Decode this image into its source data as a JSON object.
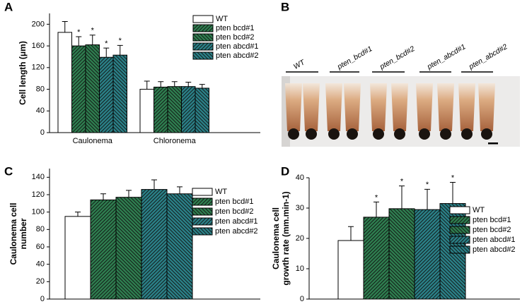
{
  "panels": [
    "A",
    "B",
    "C",
    "D"
  ],
  "image_labels": [
    "WT",
    "pten_bcd#1",
    "pten_bcd#2",
    "pten_abcd#1",
    "pten_abcd#2"
  ],
  "chart_data": [
    {
      "type": "bar",
      "ylabel": [
        "Cell length (μm)"
      ],
      "categories": [
        "Caulonema",
        "Chloronema"
      ],
      "ylim": [
        0,
        220
      ],
      "yticks": [
        0,
        40,
        80,
        120,
        160,
        200
      ],
      "series": [
        {
          "name": "WT",
          "color": "#ffffff",
          "values": [
            185,
            80
          ],
          "errors": [
            20,
            15
          ]
        },
        {
          "name": "pten bcd#1",
          "color": "#2e7d4f",
          "values": [
            160,
            84
          ],
          "errors": [
            17,
            10
          ],
          "marks": [
            "*",
            null
          ]
        },
        {
          "name": "pten bcd#2",
          "color": "#2e7d4f",
          "values": [
            162,
            85
          ],
          "errors": [
            18,
            9
          ],
          "marks": [
            "*",
            null
          ]
        },
        {
          "name": "pten abcd#1",
          "color": "#2a7f86",
          "values": [
            139,
            85
          ],
          "errors": [
            17,
            8
          ],
          "marks": [
            "*",
            null
          ]
        },
        {
          "name": "pten abcd#2",
          "color": "#2a7f86",
          "values": [
            143,
            82
          ],
          "errors": [
            18,
            7
          ],
          "marks": [
            "*",
            null
          ]
        }
      ]
    },
    {
      "type": "bar",
      "ylabel": [
        "Caulonema cell",
        "number"
      ],
      "categories": [
        null
      ],
      "ylim": [
        0,
        150
      ],
      "yticks": [
        0,
        20,
        40,
        60,
        80,
        100,
        120,
        140
      ],
      "series": [
        {
          "name": "WT",
          "color": "#ffffff",
          "values": [
            95
          ],
          "errors": [
            5
          ]
        },
        {
          "name": "pten bcd#1",
          "color": "#2e7d4f",
          "values": [
            114
          ],
          "errors": [
            7
          ]
        },
        {
          "name": "pten bcd#2",
          "color": "#2e7d4f",
          "values": [
            117
          ],
          "errors": [
            8
          ]
        },
        {
          "name": "pten abcd#1",
          "color": "#2a7f86",
          "values": [
            126
          ],
          "errors": [
            11
          ]
        },
        {
          "name": "pten abcd#2",
          "color": "#2a7f86",
          "values": [
            121
          ],
          "errors": [
            8
          ]
        }
      ]
    },
    {
      "type": "bar",
      "ylabel": [
        "Caulonema cell",
        "growth rate (mm.min-1)"
      ],
      "categories": [
        null
      ],
      "ylim": [
        0,
        40
      ],
      "yticks": [
        0,
        10,
        20,
        30,
        40
      ],
      "series": [
        {
          "name": "WT",
          "color": "#ffffff",
          "values": [
            19.3
          ],
          "errors": [
            4.6
          ]
        },
        {
          "name": "pten bcd#1",
          "color": "#2e7d4f",
          "values": [
            27
          ],
          "errors": [
            5
          ],
          "marks": [
            "*"
          ]
        },
        {
          "name": "pten bcd#2",
          "color": "#2e7d4f",
          "values": [
            29.8
          ],
          "errors": [
            7.5
          ],
          "marks": [
            "*"
          ]
        },
        {
          "name": "pten abcd#1",
          "color": "#2a7f86",
          "values": [
            29.5
          ],
          "errors": [
            6.7
          ],
          "marks": [
            "*"
          ]
        },
        {
          "name": "pten abcd#2",
          "color": "#2a7f86",
          "values": [
            31.5
          ],
          "errors": [
            7
          ],
          "marks": [
            "*"
          ]
        }
      ]
    }
  ]
}
